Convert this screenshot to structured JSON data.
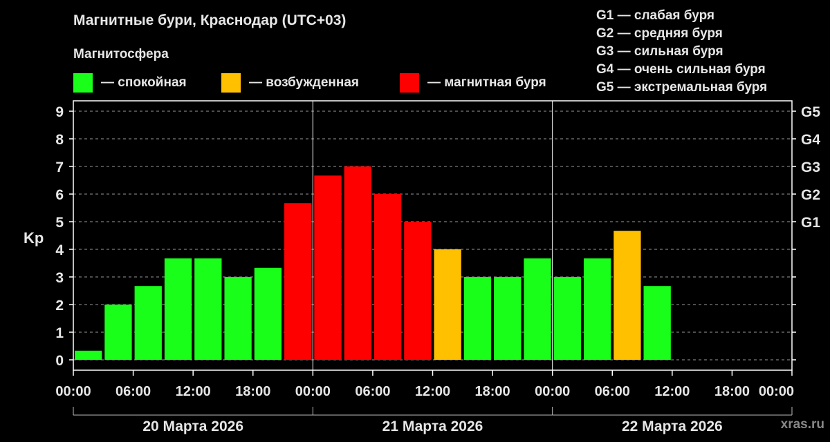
{
  "header": {
    "title": "Магнитные бури, Краснодар (UTC+03)",
    "subtitle": "Магнитосфера"
  },
  "legend": {
    "items": [
      {
        "label": "— спокойная",
        "color": "#19ff19"
      },
      {
        "label": "— возбужденная",
        "color": "#ffc000"
      },
      {
        "label": "— магнитная буря",
        "color": "#ff0000"
      }
    ]
  },
  "g_legend": [
    "G1 — слабая буря",
    "G2 — средняя буря",
    "G3 — сильная буря",
    "G4 — очень сильная буря",
    "G5 — экстремальная буря"
  ],
  "watermark": "xras.ru",
  "chart_data": {
    "type": "bar",
    "ylabel": "Kp",
    "ylim": [
      0,
      9
    ],
    "yticks": [
      "0",
      "1",
      "2",
      "3",
      "4",
      "5",
      "6",
      "7",
      "8",
      "9"
    ],
    "right_ticks": [
      {
        "value": 5,
        "label": "G1"
      },
      {
        "value": 6,
        "label": "G2"
      },
      {
        "value": 7,
        "label": "G3"
      },
      {
        "value": 8,
        "label": "G4"
      },
      {
        "value": 9,
        "label": "G5"
      }
    ],
    "x_tick_labels": [
      "00:00",
      "06:00",
      "12:00",
      "18:00",
      "00:00",
      "06:00",
      "12:00",
      "18:00",
      "00:00",
      "06:00",
      "12:00",
      "18:00",
      "00:00"
    ],
    "days": [
      "20 Марта 2026",
      "21 Марта 2026",
      "22 Марта 2026"
    ],
    "interval_hours": 3,
    "values": [
      0.33,
      2.0,
      2.67,
      3.67,
      3.67,
      3.0,
      3.33,
      5.67,
      6.67,
      7.0,
      6.0,
      5.0,
      4.0,
      3.0,
      3.0,
      3.67,
      3.0,
      3.67,
      4.67,
      2.67
    ],
    "levels": [
      "quiet",
      "quiet",
      "quiet",
      "quiet",
      "quiet",
      "quiet",
      "quiet",
      "storm",
      "storm",
      "storm",
      "storm",
      "storm",
      "active",
      "quiet",
      "quiet",
      "quiet",
      "quiet",
      "quiet",
      "active",
      "quiet"
    ],
    "level_colors": {
      "quiet": "#19ff19",
      "active": "#ffc000",
      "storm": "#ff0000"
    },
    "grid": "horizontal dashed",
    "legend_position": "top"
  }
}
